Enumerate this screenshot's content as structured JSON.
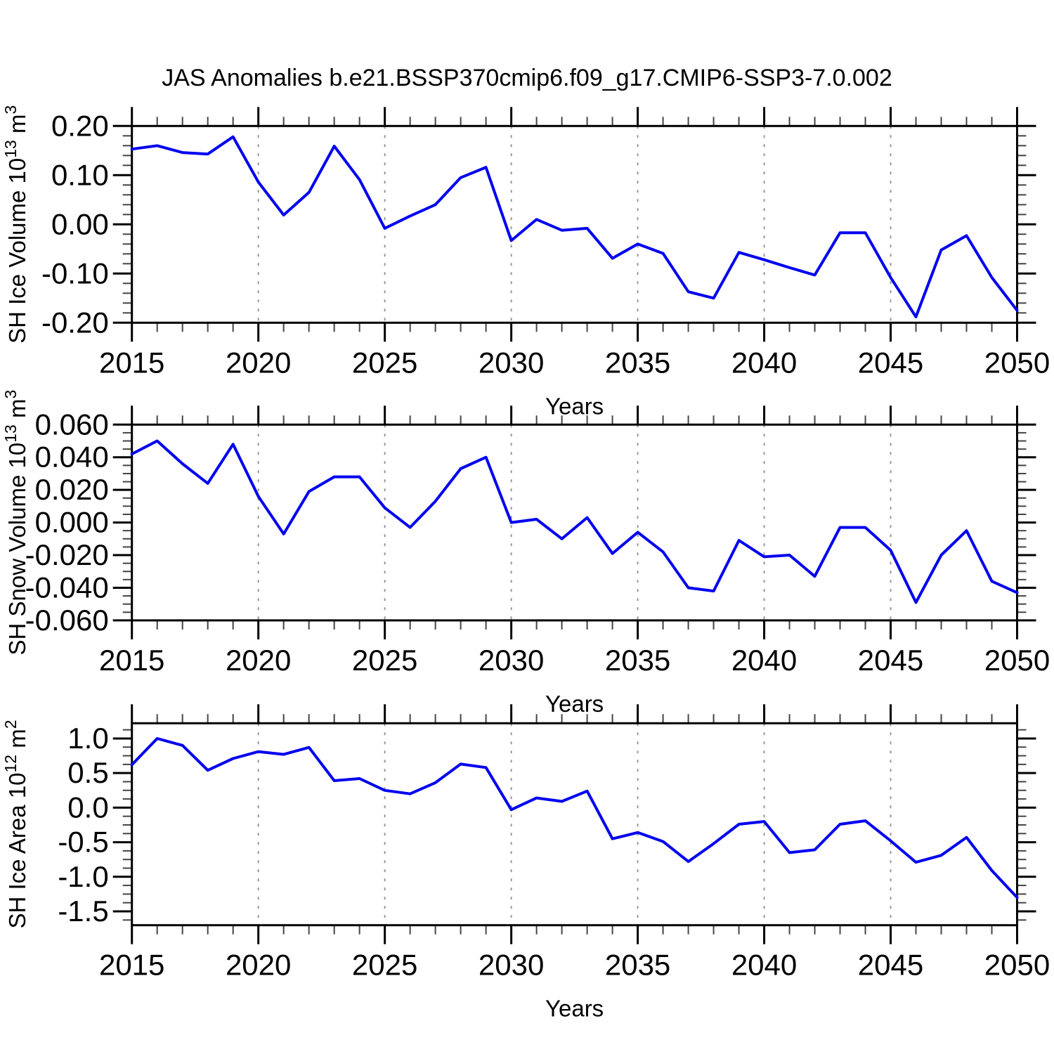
{
  "title": "JAS Anomalies b.e21.BSSP370cmip6.f09_g17.CMIP6-SSP3-7.0.002",
  "xlabel": "Years",
  "xticks": [
    2015,
    2020,
    2025,
    2030,
    2035,
    2040,
    2045,
    2050
  ],
  "colors": {
    "line": "#0000f0",
    "frame": "#000000",
    "grid": "#989898",
    "background": "#ffffff",
    "text": "#000000"
  },
  "chart_data": [
    {
      "type": "line",
      "name": "sh-ice-volume",
      "ylabel": "SH Ice Volume 10^13 m^3",
      "xlabel": "Years",
      "ylim": [
        -0.2,
        0.2
      ],
      "ytick_values": [
        0.2,
        0.1,
        0.0,
        -0.1,
        -0.2
      ],
      "ytick_labels": [
        "0.20",
        "0.10",
        "0.00",
        "-0.10",
        "-0.20"
      ],
      "minor_step": 0.02,
      "grid": "vertical-dashed",
      "x": [
        2015,
        2016,
        2017,
        2018,
        2019,
        2020,
        2021,
        2022,
        2023,
        2024,
        2025,
        2026,
        2027,
        2028,
        2029,
        2030,
        2031,
        2032,
        2033,
        2034,
        2035,
        2036,
        2037,
        2038,
        2039,
        2040,
        2041,
        2042,
        2043,
        2044,
        2045,
        2046,
        2047,
        2048,
        2049,
        2050
      ],
      "values": [
        0.153,
        0.16,
        0.146,
        0.143,
        0.178,
        0.086,
        0.019,
        0.065,
        0.159,
        0.091,
        -0.008,
        0.017,
        0.04,
        0.095,
        0.116,
        -0.033,
        0.01,
        -0.012,
        -0.008,
        -0.069,
        -0.04,
        -0.059,
        -0.137,
        -0.15,
        -0.057,
        -0.072,
        -0.088,
        -0.103,
        -0.017,
        -0.017,
        -0.108,
        -0.188,
        -0.052,
        -0.023,
        -0.108,
        -0.175
      ]
    },
    {
      "type": "line",
      "name": "sh-snow-volume",
      "ylabel": "SH Snow Volume 10^13 m^3",
      "xlabel": "Years",
      "ylim": [
        -0.06,
        0.06
      ],
      "ytick_values": [
        0.06,
        0.04,
        0.02,
        0.0,
        -0.02,
        -0.04,
        -0.06
      ],
      "ytick_labels": [
        "0.060",
        "0.040",
        "0.020",
        "0.000",
        "-0.020",
        "-0.040",
        "-0.060"
      ],
      "minor_step": 0.005,
      "grid": "vertical-dashed",
      "x": [
        2015,
        2016,
        2017,
        2018,
        2019,
        2020,
        2021,
        2022,
        2023,
        2024,
        2025,
        2026,
        2027,
        2028,
        2029,
        2030,
        2031,
        2032,
        2033,
        2034,
        2035,
        2036,
        2037,
        2038,
        2039,
        2040,
        2041,
        2042,
        2043,
        2044,
        2045,
        2046,
        2047,
        2048,
        2049,
        2050
      ],
      "values": [
        0.042,
        0.05,
        0.036,
        0.024,
        0.048,
        0.016,
        -0.007,
        0.019,
        0.028,
        0.028,
        0.009,
        -0.003,
        0.013,
        0.033,
        0.04,
        0.0,
        0.002,
        -0.01,
        0.003,
        -0.019,
        -0.006,
        -0.018,
        -0.04,
        -0.042,
        -0.011,
        -0.021,
        -0.02,
        -0.033,
        -0.003,
        -0.003,
        -0.017,
        -0.049,
        -0.02,
        -0.005,
        -0.036,
        -0.043
      ]
    },
    {
      "type": "line",
      "name": "sh-ice-area",
      "ylabel": "SH Ice Area 10^12 m^2",
      "xlabel": "Years",
      "ylim": [
        -1.7,
        1.22
      ],
      "ytick_values": [
        1.0,
        0.5,
        0.0,
        -0.5,
        -1.0,
        -1.5
      ],
      "ytick_labels": [
        "1.0",
        "0.5",
        "0.0",
        "-0.5",
        "-1.0",
        "-1.5"
      ],
      "minor_step": 0.125,
      "grid": "vertical-dashed",
      "x": [
        2015,
        2016,
        2017,
        2018,
        2019,
        2020,
        2021,
        2022,
        2023,
        2024,
        2025,
        2026,
        2027,
        2028,
        2029,
        2030,
        2031,
        2032,
        2033,
        2034,
        2035,
        2036,
        2037,
        2038,
        2039,
        2040,
        2041,
        2042,
        2043,
        2044,
        2045,
        2046,
        2047,
        2048,
        2049,
        2050
      ],
      "values": [
        0.62,
        1.0,
        0.9,
        0.54,
        0.71,
        0.81,
        0.77,
        0.87,
        0.39,
        0.42,
        0.25,
        0.2,
        0.36,
        0.63,
        0.58,
        -0.03,
        0.14,
        0.09,
        0.24,
        -0.45,
        -0.36,
        -0.49,
        -0.78,
        -0.52,
        -0.24,
        -0.2,
        -0.65,
        -0.61,
        -0.24,
        -0.19,
        -0.48,
        -0.79,
        -0.69,
        -0.43,
        -0.91,
        -1.3
      ]
    }
  ]
}
